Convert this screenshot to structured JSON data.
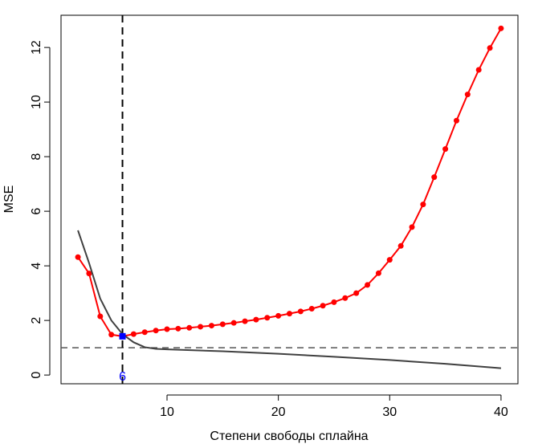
{
  "chart_data": {
    "type": "line",
    "x_label": "Степени свободы сплайна",
    "y_label": "MSE",
    "xlim": [
      0.48,
      41.52
    ],
    "ylim": [
      -0.32,
      13.18
    ],
    "xticks": [
      10,
      20,
      30,
      40
    ],
    "yticks": [
      0,
      2,
      4,
      6,
      8,
      10,
      12
    ],
    "series": [
      {
        "color": "#ff0000",
        "markers": true,
        "x": [
          2,
          3,
          4,
          5,
          6,
          7,
          8,
          9,
          10,
          11,
          12,
          13,
          14,
          15,
          16,
          17,
          18,
          19,
          20,
          21,
          22,
          23,
          24,
          25,
          26,
          27,
          28,
          29,
          30,
          31,
          32,
          33,
          34,
          35,
          36,
          37,
          38,
          39,
          40
        ],
        "values": [
          4.32,
          3.72,
          2.15,
          1.48,
          1.42,
          1.5,
          1.57,
          1.63,
          1.68,
          1.7,
          1.73,
          1.77,
          1.81,
          1.86,
          1.91,
          1.97,
          2.03,
          2.1,
          2.17,
          2.25,
          2.33,
          2.43,
          2.54,
          2.67,
          2.82,
          3.0,
          3.3,
          3.73,
          4.22,
          4.73,
          5.42,
          6.25,
          7.25,
          8.28,
          9.32,
          10.28,
          11.18,
          11.98,
          12.7
        ]
      },
      {
        "color": "#404040",
        "markers": false,
        "x": [
          2,
          3,
          4,
          5,
          6,
          7,
          8,
          9,
          10,
          15,
          20,
          25,
          30,
          35,
          40
        ],
        "values": [
          5.3,
          4.1,
          2.8,
          2.0,
          1.5,
          1.2,
          1.02,
          0.96,
          0.94,
          0.87,
          0.78,
          0.67,
          0.55,
          0.41,
          0.25
        ]
      }
    ],
    "hline": 1,
    "vline": 6,
    "highlight": {
      "x": 6,
      "y": 1.42,
      "color": "#0000ff",
      "label": "6"
    }
  }
}
